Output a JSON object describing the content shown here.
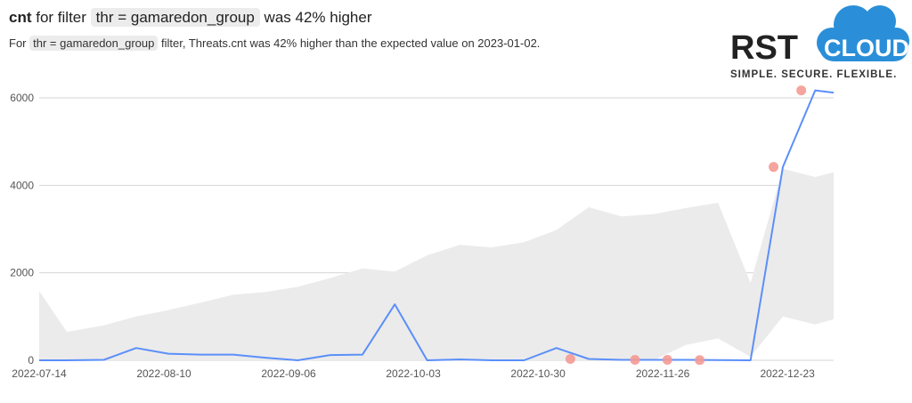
{
  "header": {
    "metric": "cnt",
    "for_filter": "for filter",
    "filter_chip": "thr = gamaredon_group",
    "was_text": "was 42% higher"
  },
  "subheader": {
    "prefix": "For",
    "chip": "thr = gamaredon_group",
    "suffix": "filter, Threats.cnt was 42% higher than the expected value on 2023-01-02."
  },
  "logo": {
    "brand_left": "RST",
    "brand_right": "CLOUD",
    "tagline": "SIMPLE.  SECURE.  FLEXIBLE.",
    "cloud_color": "#2a8fd8",
    "text_color": "#222222"
  },
  "colors": {
    "line": "#5b8ff9",
    "band": "#ebebeb",
    "anomaly": "#f49a94",
    "grid": "#d6d6d6"
  },
  "chart_data": {
    "type": "line",
    "title": "",
    "xlabel": "",
    "ylabel": "",
    "xlim": [
      "2022-07-14",
      "2023-01-02"
    ],
    "ylim": [
      0,
      6500
    ],
    "grid": true,
    "x_ticks": [
      "2022-07-14",
      "2022-08-10",
      "2022-09-06",
      "2022-10-03",
      "2022-10-30",
      "2022-11-26",
      "2022-12-23"
    ],
    "y_ticks": [
      0,
      2000,
      4000,
      6000
    ],
    "x": [
      "2022-07-14",
      "2022-07-20",
      "2022-07-28",
      "2022-08-04",
      "2022-08-11",
      "2022-08-18",
      "2022-08-25",
      "2022-09-01",
      "2022-09-08",
      "2022-09-15",
      "2022-09-22",
      "2022-09-29",
      "2022-10-06",
      "2022-10-13",
      "2022-10-20",
      "2022-10-27",
      "2022-11-03",
      "2022-11-10",
      "2022-11-17",
      "2022-11-24",
      "2022-12-01",
      "2022-12-08",
      "2022-12-15",
      "2022-12-22",
      "2022-12-29",
      "2023-01-02"
    ],
    "series": [
      {
        "values": [
          0,
          0,
          10,
          280,
          150,
          130,
          130,
          60,
          0,
          120,
          130,
          1280,
          0,
          20,
          0,
          0,
          280,
          30,
          10,
          10,
          10,
          5,
          0,
          4420,
          6170,
          6120
        ]
      }
    ],
    "expected_band": {
      "lower": [
        0,
        0,
        0,
        0,
        0,
        0,
        0,
        0,
        0,
        0,
        0,
        0,
        0,
        0,
        0,
        0,
        0,
        0,
        0,
        0,
        350,
        500,
        80,
        1000,
        820,
        940
      ],
      "upper": [
        1580,
        650,
        800,
        1000,
        1150,
        1320,
        1500,
        1560,
        1680,
        1880,
        2100,
        2030,
        2400,
        2640,
        2580,
        2700,
        2980,
        3500,
        3290,
        3340,
        3480,
        3600,
        1770,
        4380,
        4190,
        4300
      ]
    },
    "anomalies": [
      {
        "x": "2022-11-06",
        "y": 30
      },
      {
        "x": "2022-11-20",
        "y": 10
      },
      {
        "x": "2022-11-27",
        "y": 10
      },
      {
        "x": "2022-12-04",
        "y": 5
      },
      {
        "x": "2022-12-20",
        "y": 4420
      },
      {
        "x": "2022-12-26",
        "y": 6170
      }
    ]
  }
}
